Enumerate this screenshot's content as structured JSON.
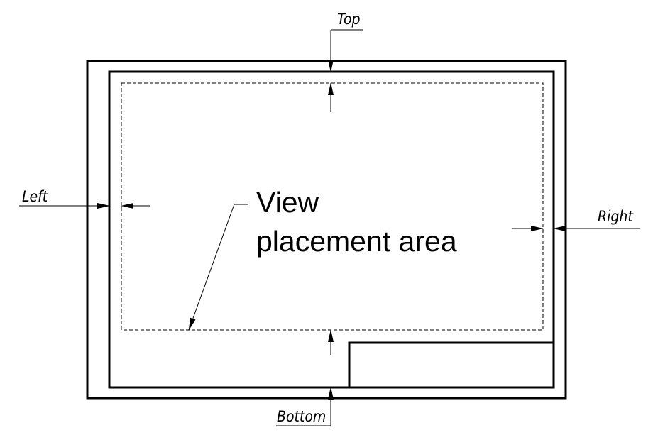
{
  "labels": {
    "top": "Top",
    "left": "Left",
    "right": "Right",
    "bottom": "Bottom",
    "area_line1": "View",
    "area_line2": "placement area"
  }
}
